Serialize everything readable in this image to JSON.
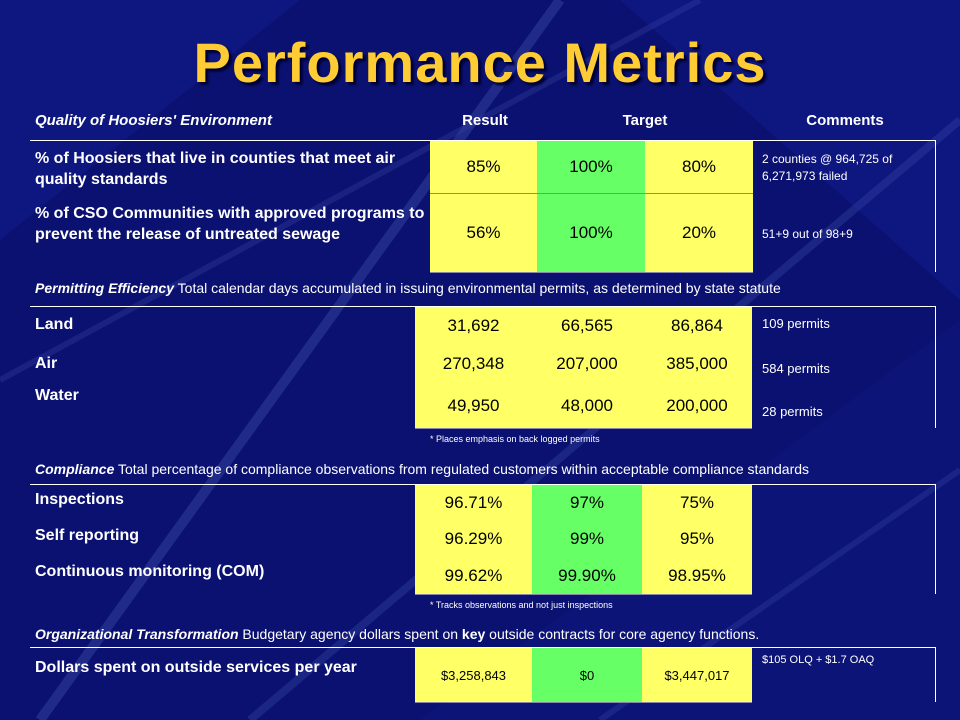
{
  "slide": {
    "title": "Performance Metrics",
    "colors": {
      "background": "#0b1170",
      "title": "#ffcc33",
      "result_cell": "#ffff66",
      "target_cell": "#66ff66"
    }
  },
  "table_header": {
    "category": "Quality of Hoosiers' Environment",
    "result": "Result",
    "target": "Target",
    "comments": "Comments"
  },
  "quality_rows": [
    {
      "label": "% of Hoosiers that live in counties that meet air quality standards",
      "result": "85%",
      "target": "100%",
      "baseline": "80%",
      "comment": "2 counties @ 964,725 of 6,271,973 failed"
    },
    {
      "label": "% of CSO Communities with approved programs to prevent the release of untreated sewage",
      "result": "56%",
      "target": "100%",
      "baseline": "20%",
      "comment": "51+9 out of 98+9"
    }
  ],
  "permitting": {
    "heading": "Permitting Efficiency",
    "description": " Total calendar days accumulated in issuing environmental permits, as determined by state statute",
    "rows": [
      {
        "label": "Land",
        "result": "31,692",
        "target": "66,565",
        "baseline": "86,864",
        "comment": "109 permits"
      },
      {
        "label": "Air",
        "result": "270,348",
        "target": "207,000",
        "baseline": "385,000",
        "comment": "584 permits"
      },
      {
        "label": "Water",
        "result": "49,950",
        "target": "48,000",
        "baseline": "200,000",
        "comment": "28 permits"
      }
    ],
    "note": "* Places emphasis on back logged permits"
  },
  "compliance": {
    "heading": "Compliance",
    "description": " Total percentage of compliance observations from regulated customers within acceptable compliance standards",
    "rows": [
      {
        "label": "Inspections",
        "result": "96.71%",
        "target": "97%",
        "baseline": "75%"
      },
      {
        "label": "Self reporting",
        "result": "96.29%",
        "target": "99%",
        "baseline": "95%"
      },
      {
        "label": "Continuous monitoring (COM)",
        "result": "99.62%",
        "target": "99.90%",
        "baseline": "98.95%"
      }
    ],
    "note": "* Tracks observations and not just inspections"
  },
  "transformation": {
    "heading": "Organizational Transformation",
    "description_a": " Budgetary agency dollars spent on ",
    "description_key": "key",
    "description_b": " outside contracts for core agency functions.",
    "row": {
      "label": "Dollars spent on outside services per year",
      "result": "$3,258,843",
      "target": "$0",
      "baseline": "$3,447,017",
      "comment": "$105 OLQ + $1.7 OAQ"
    }
  }
}
